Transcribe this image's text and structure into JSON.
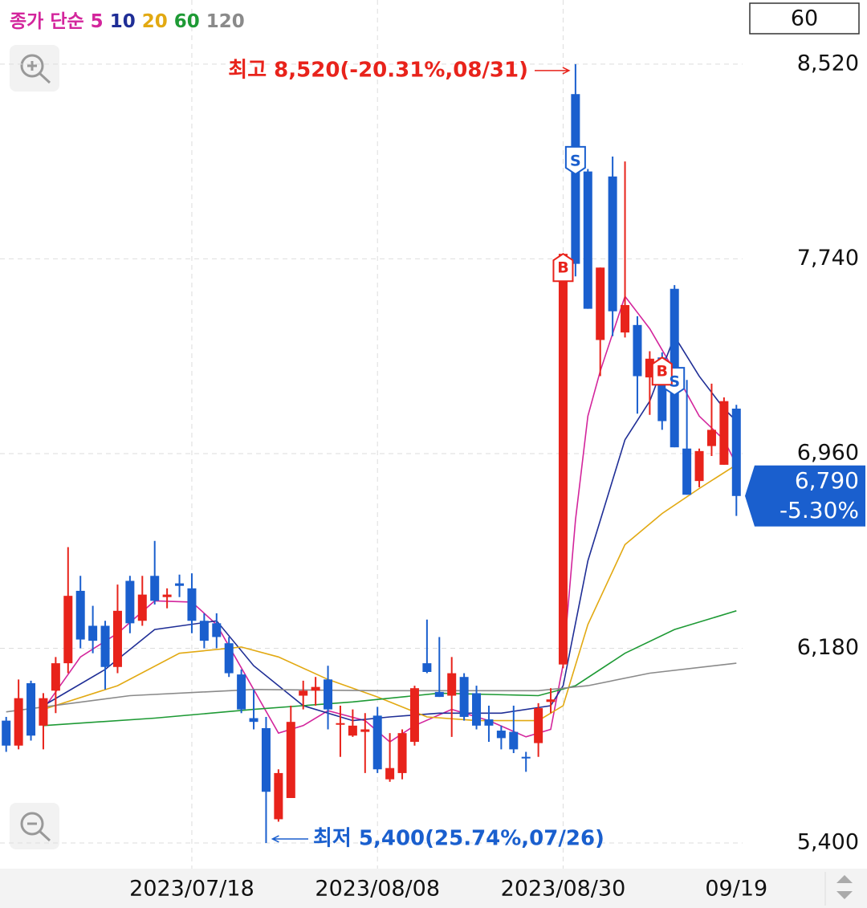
{
  "chart_data": {
    "type": "candlestick",
    "legend_prefix": "종가 단순",
    "period": "60",
    "up_color": "#e8231b",
    "down_color": "#1a5fce",
    "xlim": [
      -0.5,
      59.5
    ],
    "xticks": [
      {
        "value": 15,
        "label": "2023/07/18"
      },
      {
        "value": 30,
        "label": "2023/08/08"
      },
      {
        "value": 45,
        "label": "2023/08/30"
      },
      {
        "value": 59,
        "label": "09/19"
      }
    ],
    "ylim": [
      5297,
      8777
    ],
    "yticks": [
      {
        "value": 5400,
        "label": "5,400"
      },
      {
        "value": 6180,
        "label": "6,180"
      },
      {
        "value": 6960,
        "label": "6,960"
      },
      {
        "value": 7740,
        "label": "7,740"
      },
      {
        "value": 8520,
        "label": "8,520"
      }
    ],
    "grid": true,
    "candles": {
      "open": [
        5890,
        5790,
        6040,
        5870,
        6010,
        6120,
        6410,
        6270,
        6270,
        6105,
        6450,
        6290,
        6470,
        6385,
        6440,
        6420,
        6290,
        6280,
        6200,
        6075,
        5900,
        5860,
        5495,
        5580,
        5990,
        6010,
        6055,
        5875,
        5830,
        5845,
        5910,
        5655,
        5680,
        5805,
        6120,
        6005,
        5990,
        6065,
        6000,
        5895,
        5850,
        5845,
        5745,
        5800,
        5965,
        6115,
        8400,
        8090,
        7415,
        8070,
        7445,
        7475,
        7265,
        7345,
        7620,
        6980,
        6850,
        6990,
        6915,
        7140
      ],
      "high": [
        5905,
        6055,
        6050,
        6000,
        6145,
        6585,
        6470,
        6350,
        6290,
        6435,
        6470,
        6470,
        6610,
        6420,
        6475,
        6480,
        6320,
        6320,
        6225,
        6095,
        6015,
        5905,
        5695,
        5950,
        6050,
        6065,
        6110,
        5950,
        5935,
        5920,
        5945,
        5840,
        5855,
        6030,
        6295,
        6225,
        6145,
        6080,
        6030,
        5950,
        5870,
        5950,
        5765,
        5960,
        6020,
        7760,
        8520,
        8100,
        7705,
        8150,
        8130,
        7510,
        7370,
        7365,
        7635,
        7255,
        6980,
        7240,
        7185,
        7155
      ],
      "low": [
        5765,
        5775,
        5810,
        5775,
        5920,
        6080,
        6180,
        6160,
        6015,
        6080,
        6240,
        6270,
        6355,
        6340,
        6385,
        6240,
        6180,
        6180,
        6065,
        5920,
        5855,
        5400,
        5485,
        5580,
        5935,
        5950,
        5855,
        5745,
        5825,
        5680,
        5680,
        5645,
        5655,
        5790,
        6080,
        5985,
        5825,
        5890,
        5855,
        5805,
        5775,
        5760,
        5685,
        5745,
        5920,
        6100,
        7670,
        7540,
        7270,
        7430,
        7425,
        7120,
        7115,
        7055,
        6985,
        6795,
        6825,
        6950,
        6915,
        6710
      ],
      "close": [
        5790,
        5980,
        5830,
        5980,
        6120,
        6390,
        6215,
        6210,
        6105,
        6330,
        6280,
        6395,
        6370,
        6395,
        6430,
        6290,
        6210,
        6225,
        6080,
        5935,
        5885,
        5605,
        5680,
        5885,
        6010,
        6025,
        5935,
        5880,
        5870,
        5855,
        5695,
        5700,
        5840,
        6020,
        6085,
        5985,
        6080,
        5905,
        5870,
        5870,
        5820,
        5775,
        5740,
        5940,
        5975,
        7760,
        7720,
        7540,
        7705,
        7530,
        7555,
        7270,
        7340,
        7090,
        6985,
        6795,
        6970,
        7055,
        7170,
        6790
      ]
    },
    "series": [
      {
        "name": "5",
        "color": "#d3259c",
        "x": [
          3,
          6,
          9,
          12,
          15,
          17,
          20,
          22,
          24,
          26,
          29,
          31,
          33,
          36,
          39,
          42,
          44,
          45,
          46,
          47,
          48,
          50,
          51,
          52,
          54,
          56,
          58,
          59
        ],
        "values": [
          5935,
          6145,
          6240,
          6370,
          6365,
          6275,
          6015,
          5840,
          5870,
          5930,
          5890,
          5805,
          5870,
          5935,
          5890,
          5825,
          5855,
          6115,
          6695,
          7110,
          7290,
          7590,
          7525,
          7460,
          7290,
          7110,
          7015,
          6915
        ]
      },
      {
        "name": "10",
        "color": "#1f2e96",
        "x": [
          3,
          8,
          12,
          17,
          20,
          24,
          28,
          31,
          35,
          40,
          44,
          45,
          47,
          50,
          52,
          54,
          56,
          58,
          59
        ],
        "values": [
          5950,
          6095,
          6255,
          6290,
          6110,
          5950,
          5890,
          5905,
          5920,
          5920,
          5950,
          6030,
          6530,
          7015,
          7170,
          7430,
          7270,
          7140,
          7090
        ]
      },
      {
        "name": "20",
        "color": "#e2a912",
        "x": [
          3,
          9,
          14,
          19,
          22,
          26,
          30,
          34,
          38,
          43,
          45,
          47,
          50,
          53,
          56,
          59
        ],
        "values": [
          5935,
          6030,
          6160,
          6185,
          6145,
          6055,
          5985,
          5905,
          5890,
          5890,
          5950,
          6275,
          6595,
          6720,
          6820,
          6915
        ]
      },
      {
        "name": "60",
        "color": "#1e9a35",
        "x": [
          3,
          12,
          20,
          28,
          35,
          43,
          46,
          50,
          54,
          59
        ],
        "values": [
          5870,
          5900,
          5935,
          5965,
          6000,
          5990,
          6030,
          6160,
          6255,
          6330
        ]
      },
      {
        "name": "120",
        "color": "#8a8a8a",
        "x": [
          0,
          10,
          20,
          30,
          43,
          47,
          52,
          59
        ],
        "values": [
          5925,
          5990,
          6015,
          6010,
          6010,
          6030,
          6080,
          6120
        ]
      }
    ],
    "annotations": [
      {
        "label": "최고 8,520(-20.31%,08/31)",
        "x": 46,
        "y": 8520,
        "color": "#e8231b"
      },
      {
        "label": "최저 5,400(25.74%,07/26)",
        "x": 21,
        "y": 5400,
        "color": "#1a5fce"
      }
    ],
    "signals": [
      {
        "x": 46,
        "label": "S"
      },
      {
        "x": 45,
        "label": "B"
      },
      {
        "x": 54,
        "label": "S"
      },
      {
        "x": 53,
        "label": "B"
      }
    ],
    "current": {
      "value": 6790,
      "label": "6,790",
      "change": "-5.30%",
      "color": "#1a5fce"
    }
  }
}
